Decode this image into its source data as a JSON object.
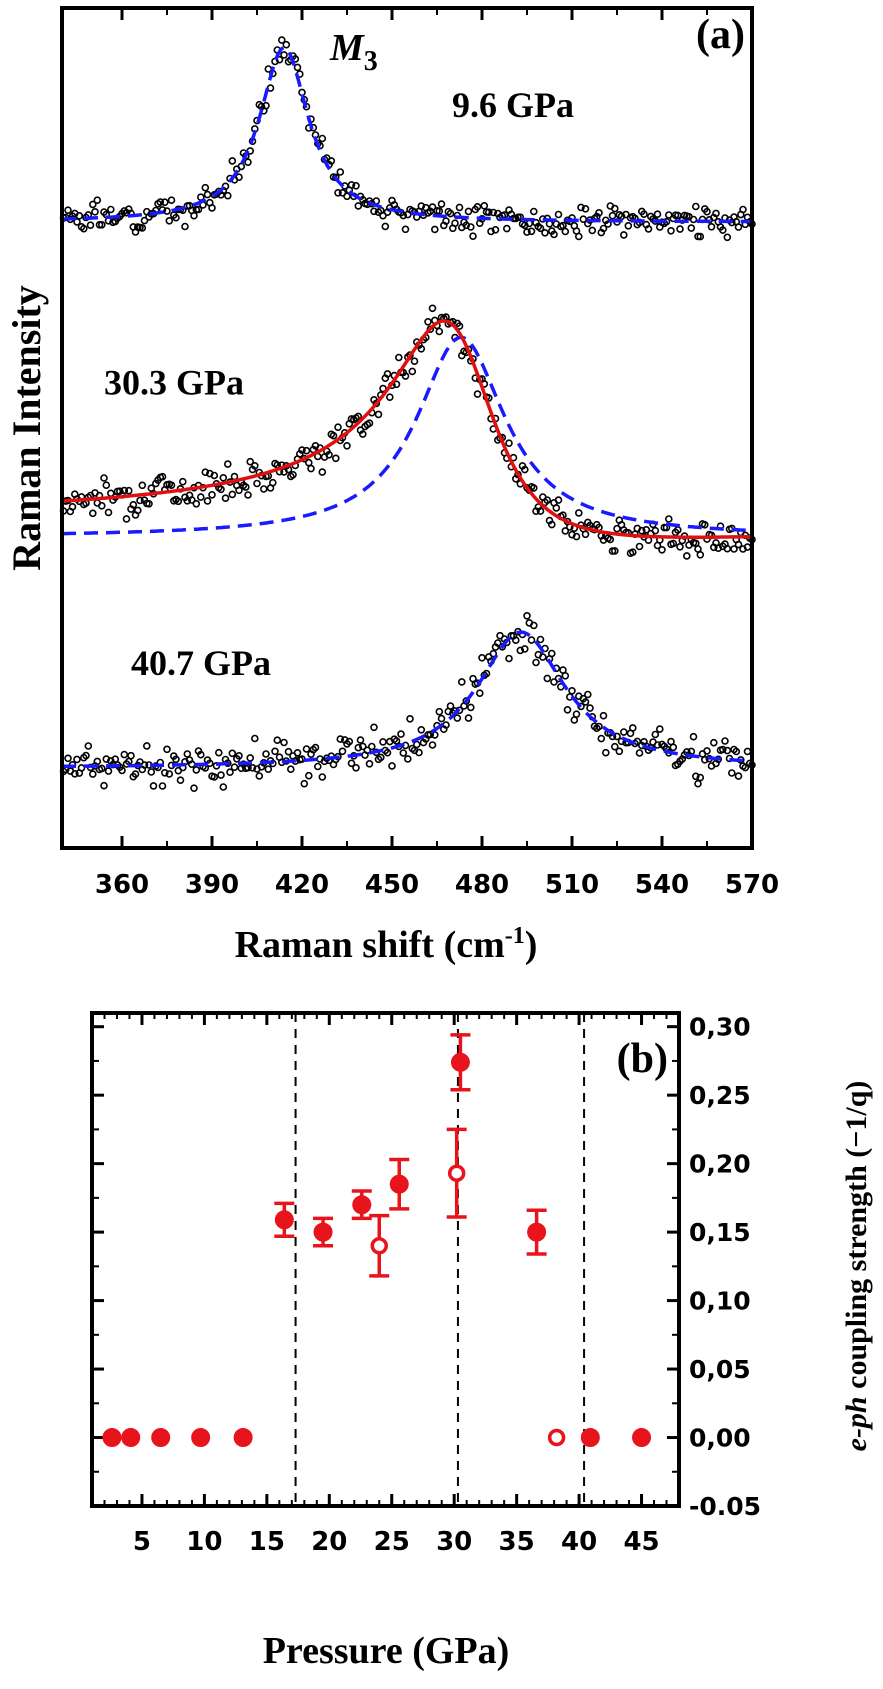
{
  "colors": {
    "frame": "#000000",
    "data_points": "#000000",
    "fit_dashed": "#1a1aff",
    "fit_solid": "#e01010",
    "coupling_marker": "#e8141c",
    "guide_line": "#000000"
  },
  "chart_data": [
    {
      "panel_label": "(a)",
      "type": "scatter",
      "title": "",
      "xlabel": "Raman shift (cm",
      "xlabel_superscript": "-1",
      "xlabel_close": ")",
      "ylabel": "Raman Intensity",
      "xlim": [
        340,
        570
      ],
      "ylim": [
        0,
        10
      ],
      "xticks": [
        360,
        390,
        420,
        450,
        480,
        510,
        540,
        570
      ],
      "xtick_labels": [
        "360",
        "390",
        "420",
        "450",
        "480",
        "510",
        "540",
        "570"
      ],
      "mode_label": "M",
      "mode_label_sub": "3",
      "series": [
        {
          "name": "9.6 GPa",
          "label": "9.6 GPa",
          "label_x": 470,
          "label_y": 8.7,
          "baseline": 7.45,
          "dashed_fit": {
            "center": 414,
            "amplitude": 2.08,
            "width": 10
          },
          "noise": 0.085,
          "seed": 3
        },
        {
          "name": "30.3 GPa",
          "label": "30.3 GPa",
          "label_x": 354,
          "label_y": 5.4,
          "baseline": 3.7,
          "dashed_fit": {
            "center": 473,
            "amplitude": 2.38,
            "width": 18
          },
          "solid_fit": {
            "center": 473,
            "amplitude": 2.4,
            "width": 21,
            "q": -3.7
          },
          "noise": 0.1,
          "seed": 7
        },
        {
          "name": "40.7 GPa",
          "label": "40.7 GPa",
          "label_x": 363,
          "label_y": 2.06,
          "baseline": 0.95,
          "dashed_fit": {
            "center": 493,
            "amplitude": 1.62,
            "width": 18
          },
          "noise": 0.12,
          "seed": 11
        }
      ]
    },
    {
      "panel_label": "(b)",
      "type": "scatter",
      "title": "",
      "xlabel": "Pressure (GPa)",
      "ylabel_italic": "e-ph",
      "ylabel": " coupling strength (−1/q)",
      "xlim": [
        1,
        48
      ],
      "ylim": [
        -0.05,
        0.31
      ],
      "xticks": [
        5,
        10,
        15,
        20,
        25,
        30,
        35,
        40,
        45
      ],
      "xtick_labels": [
        "5",
        "10",
        "15",
        "20",
        "25",
        "30",
        "35",
        "40",
        "45"
      ],
      "yticks": [
        -0.05,
        0.0,
        0.05,
        0.1,
        0.15,
        0.2,
        0.25,
        0.3
      ],
      "ytick_labels": [
        "-0.05",
        "0,00",
        "0,05",
        "0,10",
        "0,15",
        "0,20",
        "0,25",
        "0,30"
      ],
      "vertical_dashed_lines": [
        17.3,
        30.3,
        40.4
      ],
      "series": [
        {
          "name": "filled",
          "x": [
            2.6,
            4.1,
            6.5,
            9.7,
            13.1,
            16.4,
            19.5,
            22.6,
            25.6,
            30.5,
            36.6,
            40.9,
            45.0
          ],
          "y": [
            0.0,
            0.0,
            0.0,
            0.0,
            0.0,
            0.159,
            0.15,
            0.17,
            0.185,
            0.274,
            0.15,
            0.0,
            0.0
          ],
          "err": [
            0,
            0,
            0,
            0,
            0,
            0.012,
            0.01,
            0.01,
            0.018,
            0.02,
            0.016,
            0,
            0
          ]
        },
        {
          "name": "open",
          "x": [
            24.0,
            30.2,
            38.2
          ],
          "y": [
            0.14,
            0.193,
            0.0
          ],
          "err": [
            0.022,
            0.032,
            0
          ]
        }
      ]
    }
  ]
}
